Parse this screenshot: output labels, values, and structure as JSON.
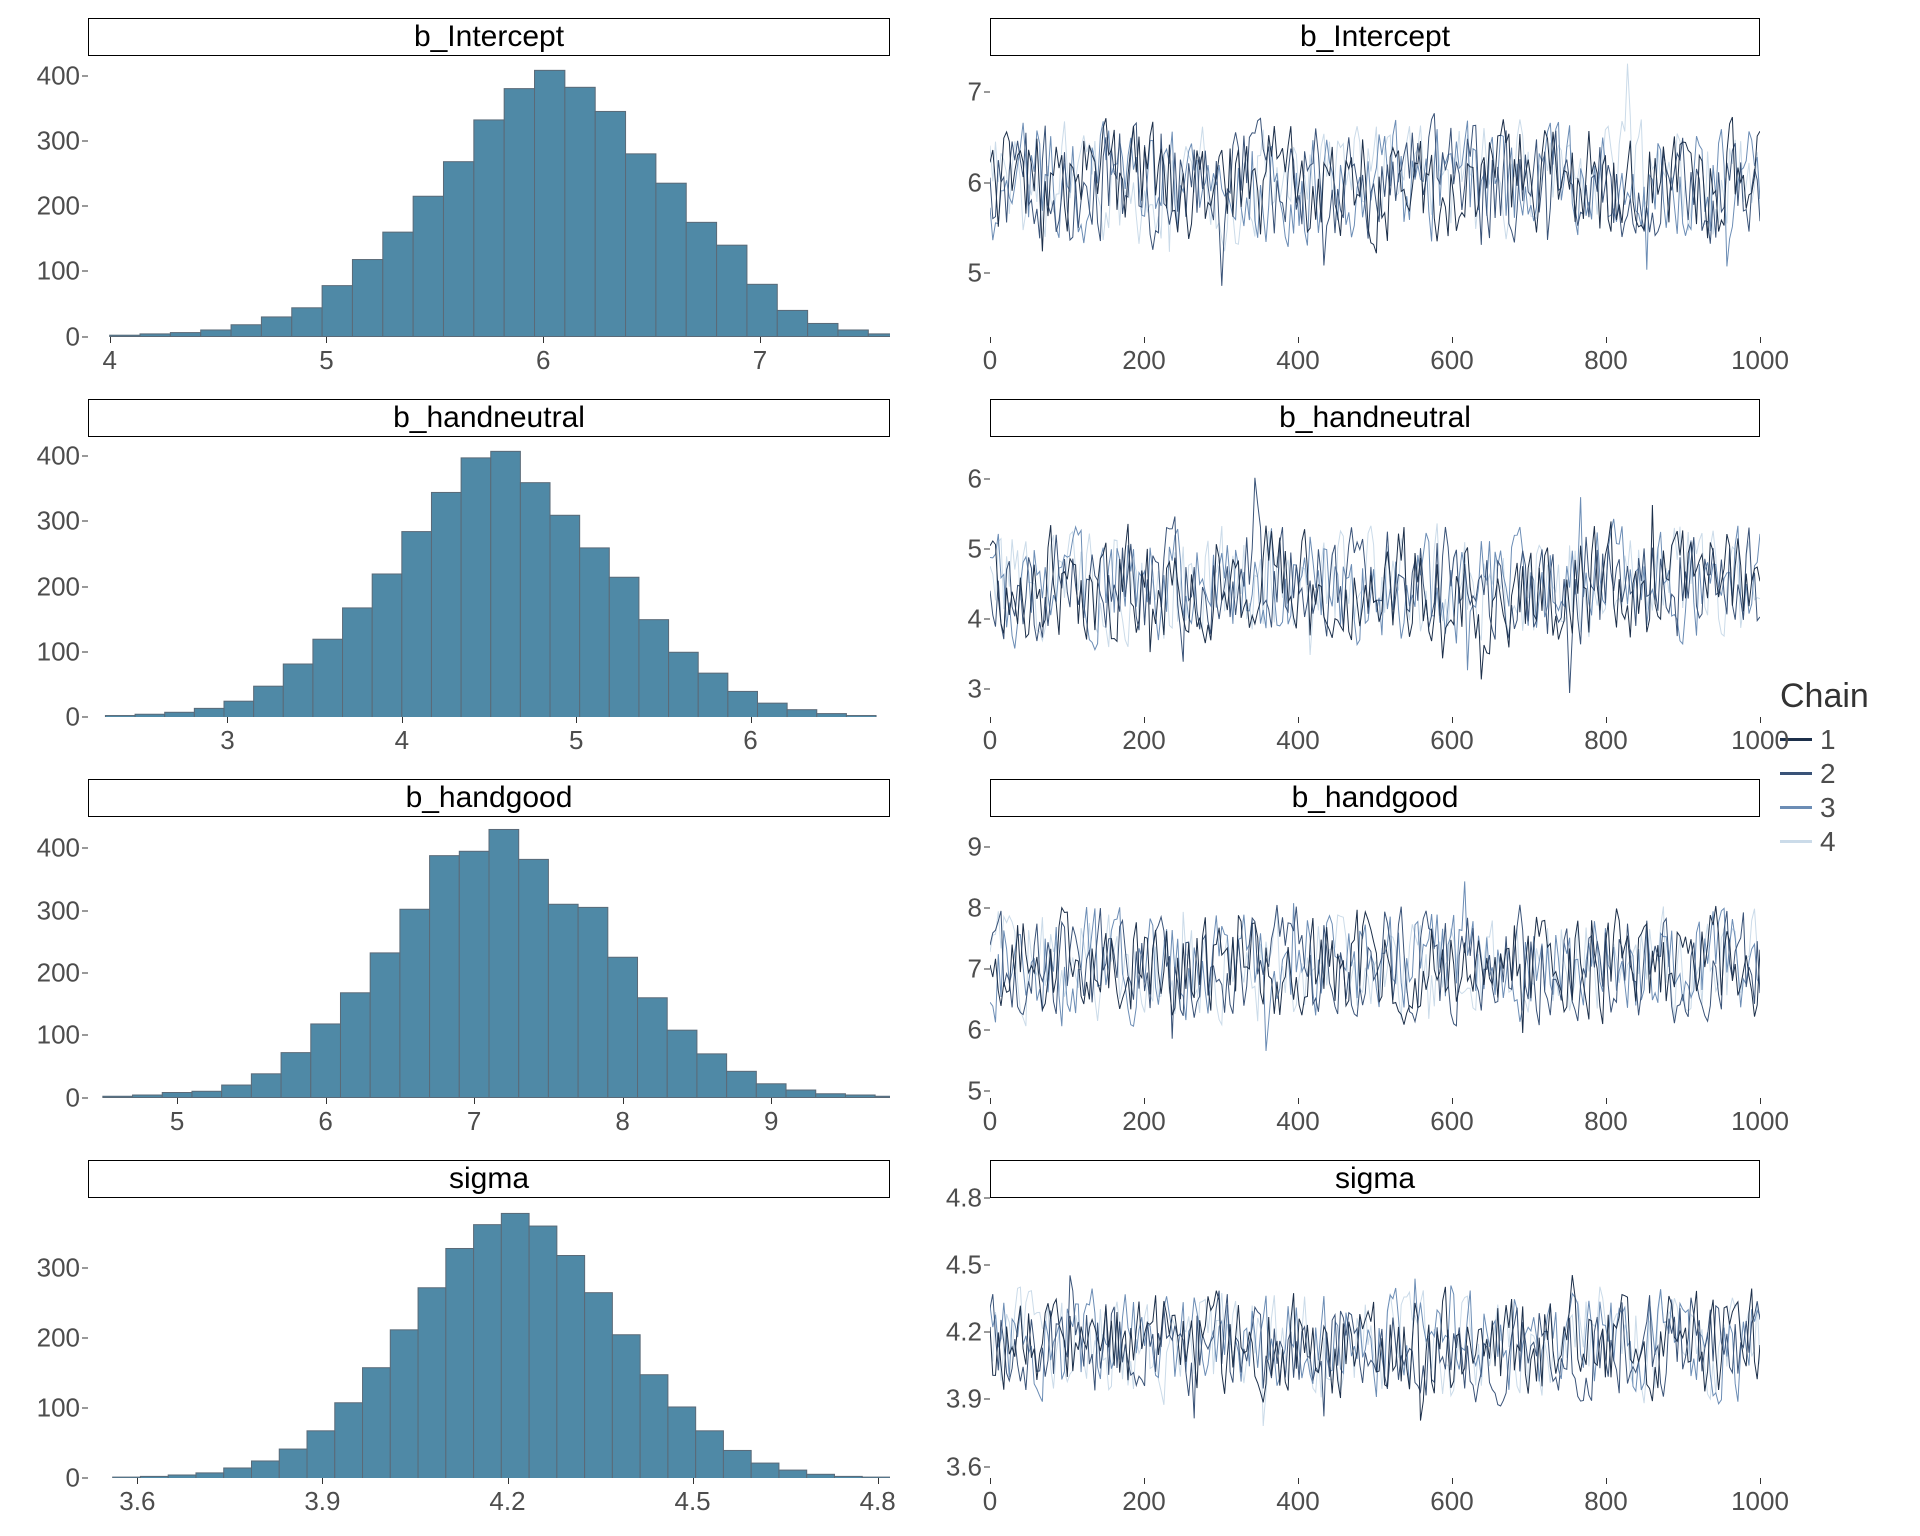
{
  "layout": {
    "figure_width": 1920,
    "figure_height": 1536,
    "rows": 4,
    "cols": 2,
    "background_color": "#ffffff",
    "tick_label_fontsize": 26,
    "tick_label_color": "#4d4d4d",
    "strip_fontsize": 30,
    "strip_border_color": "#000000",
    "strip_background": "#ffffff"
  },
  "colors": {
    "hist_fill": "#4f89a6",
    "hist_stroke": "#5a6a78",
    "chain": [
      "#1c2f4a",
      "#3a5378",
      "#6c8db5",
      "#cbdbe9"
    ]
  },
  "legend": {
    "title": "Chain",
    "items": [
      "1",
      "2",
      "3",
      "4"
    ]
  },
  "parameters": [
    "b_Intercept",
    "b_handneutral",
    "b_handgood",
    "sigma"
  ],
  "histograms": {
    "b_Intercept": {
      "title": "b_Intercept",
      "xlim": [
        3.9,
        7.6
      ],
      "xticks": [
        4,
        5,
        6,
        7
      ],
      "ylim": [
        0,
        430
      ],
      "yticks": [
        0,
        100,
        200,
        300,
        400
      ],
      "bar_width": 0.14,
      "bars": [
        {
          "x": 4.0,
          "y": 2
        },
        {
          "x": 4.14,
          "y": 4
        },
        {
          "x": 4.28,
          "y": 6
        },
        {
          "x": 4.42,
          "y": 10
        },
        {
          "x": 4.56,
          "y": 18
        },
        {
          "x": 4.7,
          "y": 30
        },
        {
          "x": 4.84,
          "y": 44
        },
        {
          "x": 4.98,
          "y": 78
        },
        {
          "x": 5.12,
          "y": 118
        },
        {
          "x": 5.26,
          "y": 160
        },
        {
          "x": 5.4,
          "y": 215
        },
        {
          "x": 5.54,
          "y": 268
        },
        {
          "x": 5.68,
          "y": 332
        },
        {
          "x": 5.82,
          "y": 380
        },
        {
          "x": 5.96,
          "y": 408
        },
        {
          "x": 6.1,
          "y": 382
        },
        {
          "x": 6.24,
          "y": 345
        },
        {
          "x": 6.38,
          "y": 280
        },
        {
          "x": 6.52,
          "y": 235
        },
        {
          "x": 6.66,
          "y": 175
        },
        {
          "x": 6.8,
          "y": 140
        },
        {
          "x": 6.94,
          "y": 80
        },
        {
          "x": 7.08,
          "y": 40
        },
        {
          "x": 7.22,
          "y": 20
        },
        {
          "x": 7.36,
          "y": 10
        },
        {
          "x": 7.5,
          "y": 4
        }
      ]
    },
    "b_handneutral": {
      "title": "b_handneutral",
      "xlim": [
        2.2,
        6.8
      ],
      "xticks": [
        3,
        4,
        5,
        6
      ],
      "ylim": [
        0,
        430
      ],
      "yticks": [
        0,
        100,
        200,
        300,
        400
      ],
      "bar_width": 0.17,
      "bars": [
        {
          "x": 2.3,
          "y": 3
        },
        {
          "x": 2.47,
          "y": 5
        },
        {
          "x": 2.64,
          "y": 8
        },
        {
          "x": 2.81,
          "y": 14
        },
        {
          "x": 2.98,
          "y": 25
        },
        {
          "x": 3.15,
          "y": 48
        },
        {
          "x": 3.32,
          "y": 82
        },
        {
          "x": 3.49,
          "y": 120
        },
        {
          "x": 3.66,
          "y": 168
        },
        {
          "x": 3.83,
          "y": 220
        },
        {
          "x": 4.0,
          "y": 285
        },
        {
          "x": 4.17,
          "y": 345
        },
        {
          "x": 4.34,
          "y": 398
        },
        {
          "x": 4.51,
          "y": 408
        },
        {
          "x": 4.68,
          "y": 360
        },
        {
          "x": 4.85,
          "y": 310
        },
        {
          "x": 5.02,
          "y": 260
        },
        {
          "x": 5.19,
          "y": 215
        },
        {
          "x": 5.36,
          "y": 150
        },
        {
          "x": 5.53,
          "y": 100
        },
        {
          "x": 5.7,
          "y": 68
        },
        {
          "x": 5.87,
          "y": 40
        },
        {
          "x": 6.04,
          "y": 22
        },
        {
          "x": 6.21,
          "y": 12
        },
        {
          "x": 6.38,
          "y": 6
        },
        {
          "x": 6.55,
          "y": 3
        }
      ]
    },
    "b_handgood": {
      "title": "b_handgood",
      "xlim": [
        4.4,
        9.8
      ],
      "xticks": [
        5,
        6,
        7,
        8,
        9
      ],
      "ylim": [
        0,
        450
      ],
      "yticks": [
        0,
        100,
        200,
        300,
        400
      ],
      "bar_width": 0.2,
      "bars": [
        {
          "x": 4.5,
          "y": 2
        },
        {
          "x": 4.7,
          "y": 4
        },
        {
          "x": 4.9,
          "y": 8
        },
        {
          "x": 5.1,
          "y": 10
        },
        {
          "x": 5.3,
          "y": 20
        },
        {
          "x": 5.5,
          "y": 38
        },
        {
          "x": 5.7,
          "y": 72
        },
        {
          "x": 5.9,
          "y": 118
        },
        {
          "x": 6.1,
          "y": 168
        },
        {
          "x": 6.3,
          "y": 232
        },
        {
          "x": 6.5,
          "y": 302
        },
        {
          "x": 6.7,
          "y": 388
        },
        {
          "x": 6.9,
          "y": 395
        },
        {
          "x": 7.1,
          "y": 430
        },
        {
          "x": 7.3,
          "y": 382
        },
        {
          "x": 7.5,
          "y": 310
        },
        {
          "x": 7.7,
          "y": 305
        },
        {
          "x": 7.9,
          "y": 225
        },
        {
          "x": 8.1,
          "y": 160
        },
        {
          "x": 8.3,
          "y": 108
        },
        {
          "x": 8.5,
          "y": 70
        },
        {
          "x": 8.7,
          "y": 42
        },
        {
          "x": 8.9,
          "y": 22
        },
        {
          "x": 9.1,
          "y": 12
        },
        {
          "x": 9.3,
          "y": 6
        },
        {
          "x": 9.5,
          "y": 4
        },
        {
          "x": 9.7,
          "y": 2
        }
      ]
    },
    "sigma": {
      "title": "sigma",
      "xlim": [
        3.52,
        4.82
      ],
      "xticks": [
        3.6,
        3.9,
        4.2,
        4.5,
        4.8
      ],
      "ylim": [
        0,
        400
      ],
      "yticks": [
        0,
        100,
        200,
        300
      ],
      "bar_width": 0.045,
      "bars": [
        {
          "x": 3.56,
          "y": 2
        },
        {
          "x": 3.605,
          "y": 3
        },
        {
          "x": 3.65,
          "y": 5
        },
        {
          "x": 3.695,
          "y": 8
        },
        {
          "x": 3.74,
          "y": 15
        },
        {
          "x": 3.785,
          "y": 25
        },
        {
          "x": 3.83,
          "y": 42
        },
        {
          "x": 3.875,
          "y": 68
        },
        {
          "x": 3.92,
          "y": 108
        },
        {
          "x": 3.965,
          "y": 158
        },
        {
          "x": 4.01,
          "y": 212
        },
        {
          "x": 4.055,
          "y": 272
        },
        {
          "x": 4.1,
          "y": 328
        },
        {
          "x": 4.145,
          "y": 362
        },
        {
          "x": 4.19,
          "y": 378
        },
        {
          "x": 4.235,
          "y": 360
        },
        {
          "x": 4.28,
          "y": 318
        },
        {
          "x": 4.325,
          "y": 265
        },
        {
          "x": 4.37,
          "y": 205
        },
        {
          "x": 4.415,
          "y": 148
        },
        {
          "x": 4.46,
          "y": 102
        },
        {
          "x": 4.505,
          "y": 68
        },
        {
          "x": 4.55,
          "y": 40
        },
        {
          "x": 4.595,
          "y": 22
        },
        {
          "x": 4.64,
          "y": 12
        },
        {
          "x": 4.685,
          "y": 6
        },
        {
          "x": 4.73,
          "y": 3
        },
        {
          "x": 4.775,
          "y": 2
        }
      ]
    }
  },
  "traces": {
    "b_Intercept": {
      "title": "b_Intercept",
      "xlim": [
        0,
        1000
      ],
      "xticks": [
        0,
        200,
        400,
        600,
        800,
        1000
      ],
      "ylim": [
        4.3,
        7.4
      ],
      "yticks": [
        5,
        6,
        7
      ],
      "center": 6.0,
      "amplitude": 0.55,
      "n_points": 280,
      "seed": 11
    },
    "b_handneutral": {
      "title": "b_handneutral",
      "xlim": [
        0,
        1000
      ],
      "xticks": [
        0,
        200,
        400,
        600,
        800,
        1000
      ],
      "ylim": [
        2.6,
        6.6
      ],
      "yticks": [
        3,
        4,
        5,
        6
      ],
      "center": 4.5,
      "amplitude": 0.7,
      "n_points": 280,
      "seed": 22
    },
    "b_handgood": {
      "title": "b_handgood",
      "xlim": [
        0,
        1000
      ],
      "xticks": [
        0,
        200,
        400,
        600,
        800,
        1000
      ],
      "ylim": [
        4.9,
        9.5
      ],
      "yticks": [
        5,
        6,
        7,
        8,
        9
      ],
      "center": 7.1,
      "amplitude": 0.75,
      "n_points": 280,
      "seed": 33
    },
    "sigma": {
      "title": "sigma",
      "xlim": [
        0,
        1000
      ],
      "xticks": [
        0,
        200,
        400,
        600,
        800,
        1000
      ],
      "ylim": [
        3.55,
        4.8
      ],
      "yticks": [
        3.6,
        3.9,
        4.2,
        4.5,
        4.8
      ],
      "center": 4.15,
      "amplitude": 0.2,
      "n_points": 280,
      "seed": 44
    }
  }
}
